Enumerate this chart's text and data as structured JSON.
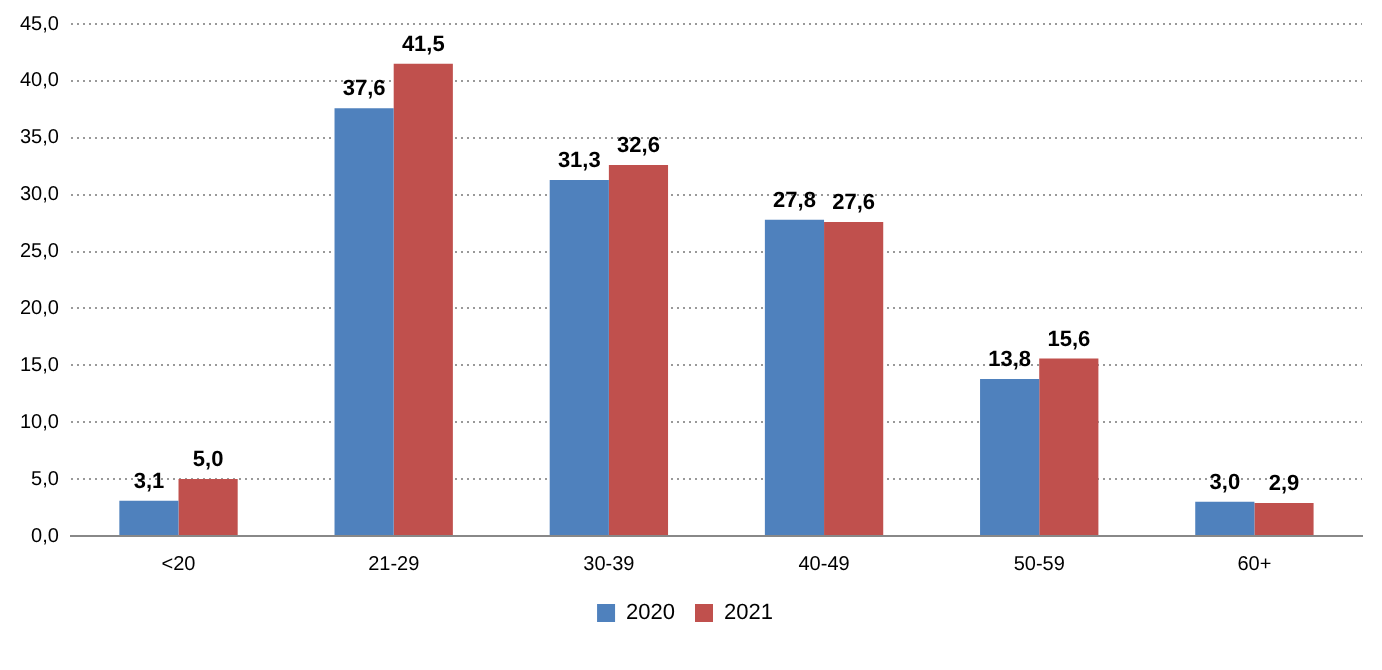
{
  "chart_data": {
    "type": "bar",
    "categories": [
      "<20",
      "21-29",
      "30-39",
      "40-49",
      "50-59",
      "60+"
    ],
    "series": [
      {
        "name": "2020",
        "color": "#4f81bd",
        "values": [
          3.1,
          37.6,
          31.3,
          27.8,
          13.8,
          3.0
        ],
        "value_labels": [
          "3,1",
          "37,6",
          "31,3",
          "27,8",
          "13,8",
          "3,0"
        ]
      },
      {
        "name": "2021",
        "color": "#c0504d",
        "values": [
          5.0,
          41.5,
          32.6,
          27.6,
          15.6,
          2.9
        ],
        "value_labels": [
          "5,0",
          "41,5",
          "32,6",
          "27,6",
          "15,6",
          "2,9"
        ]
      }
    ],
    "ylim": [
      0,
      45
    ],
    "yticks": [
      {
        "value": 0,
        "label": "0,0"
      },
      {
        "value": 5,
        "label": "5,0"
      },
      {
        "value": 10,
        "label": "10,0"
      },
      {
        "value": 15,
        "label": "15,0"
      },
      {
        "value": 20,
        "label": "20,0"
      },
      {
        "value": 25,
        "label": "25,0"
      },
      {
        "value": 30,
        "label": "30,0"
      },
      {
        "value": 35,
        "label": "35,0"
      },
      {
        "value": 40,
        "label": "40,0"
      },
      {
        "value": 45,
        "label": "45,0"
      }
    ],
    "grid": "y",
    "legend": "bottom"
  }
}
